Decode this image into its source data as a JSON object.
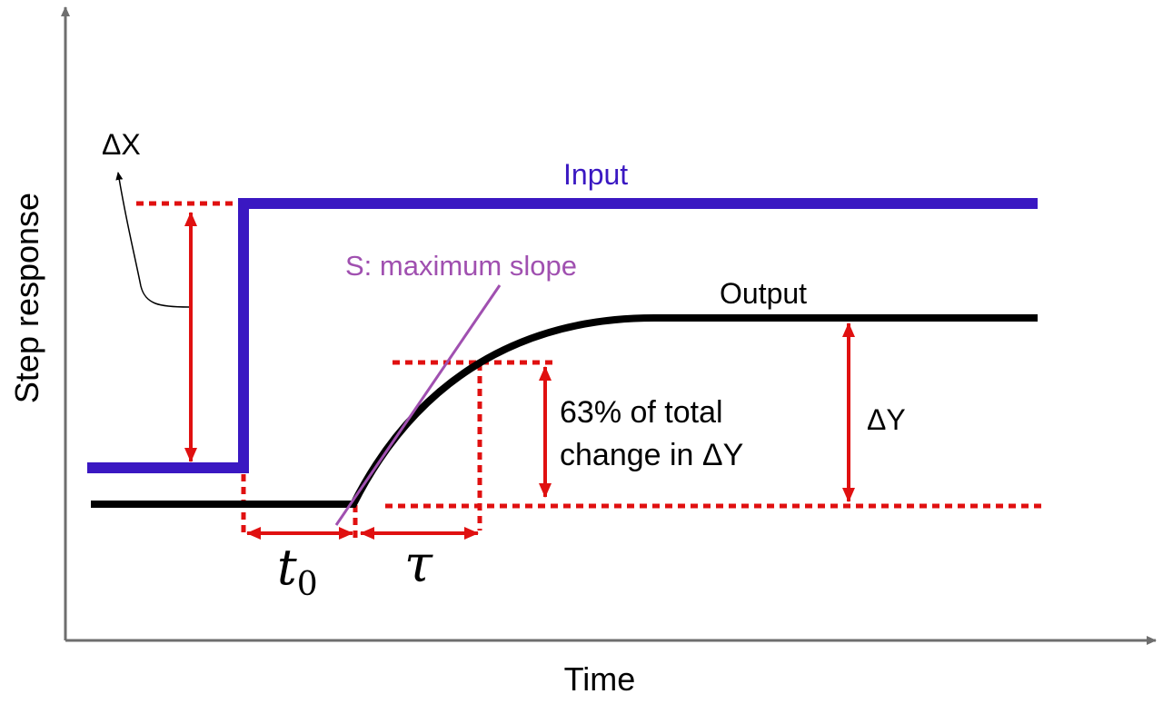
{
  "axes": {
    "xlabel": "Time",
    "ylabel": "Step response"
  },
  "labels": {
    "input": "Input",
    "output": "Output",
    "delta_x": "ΔX",
    "delta_y": "ΔY",
    "max_slope": "S: maximum slope",
    "pct_line1": "63% of total",
    "pct_line2": "change in ΔY",
    "t0_base": "t",
    "t0_sub": "0",
    "tau": "τ"
  },
  "colors": {
    "input": "#3a18c2",
    "output": "#000000",
    "annotation": "#e01010",
    "slope": "#a050b0",
    "axis": "#6e6e6e"
  }
}
